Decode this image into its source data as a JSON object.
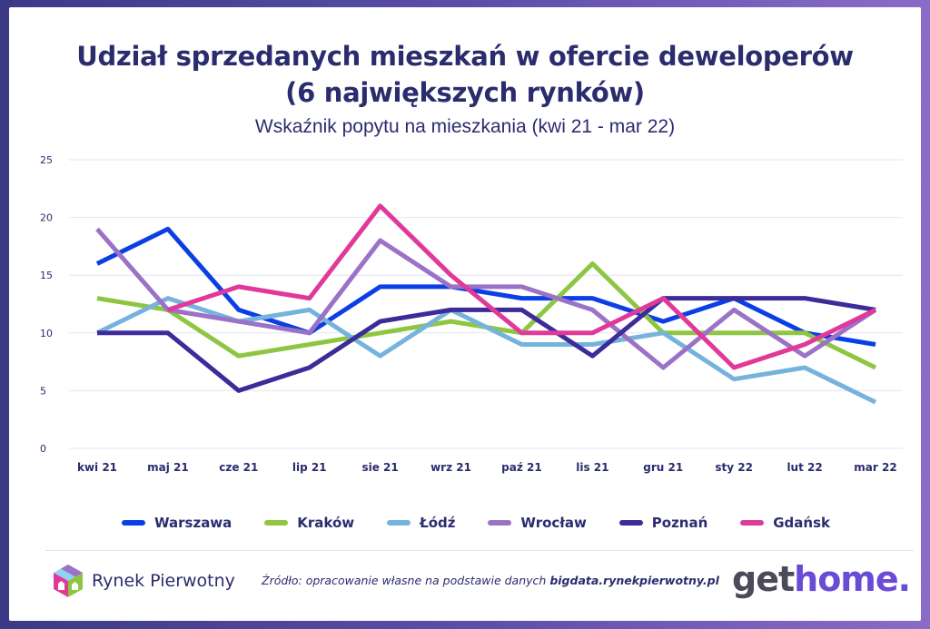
{
  "title_line1": "Udział sprzedanych mieszkań w ofercie deweloperów",
  "title_line2": "(6 największych rynków)",
  "subtitle": "Wskaźnik popytu na mieszkania (kwi 21 - mar 22)",
  "chart_data": {
    "type": "line",
    "categories": [
      "kwi 21",
      "maj 21",
      "cze 21",
      "lip 21",
      "sie 21",
      "wrz 21",
      "paź 21",
      "lis 21",
      "gru 21",
      "sty 22",
      "lut 22",
      "mar 22"
    ],
    "ylim": [
      0,
      25
    ],
    "yticks": [
      0,
      5,
      10,
      15,
      20,
      25
    ],
    "grid": true,
    "legend_position": "bottom",
    "series": [
      {
        "name": "Warszawa",
        "color": "#0b3fe6",
        "values": [
          16,
          19,
          12,
          10,
          14,
          14,
          13,
          13,
          11,
          13,
          10,
          9
        ]
      },
      {
        "name": "Kraków",
        "color": "#8ec641",
        "values": [
          13,
          12,
          8,
          9,
          10,
          11,
          10,
          16,
          10,
          10,
          10,
          7
        ]
      },
      {
        "name": "Łódź",
        "color": "#76b3dc",
        "values": [
          10,
          13,
          11,
          12,
          8,
          12,
          9,
          9,
          10,
          6,
          7,
          4
        ]
      },
      {
        "name": "Wrocław",
        "color": "#9b72c6",
        "values": [
          19,
          12,
          11,
          10,
          18,
          14,
          14,
          12,
          7,
          12,
          8,
          12
        ]
      },
      {
        "name": "Poznań",
        "color": "#3d2b9a",
        "values": [
          10,
          10,
          5,
          7,
          11,
          12,
          12,
          8,
          13,
          13,
          13,
          12
        ]
      },
      {
        "name": "Gdańsk",
        "color": "#e0399a",
        "values": [
          null,
          12,
          14,
          13,
          21,
          15,
          10,
          10,
          13,
          7,
          9,
          12
        ]
      }
    ]
  },
  "footer": {
    "brand_left": "Rynek Pierwotny",
    "source_prefix": "Źródło: opracowanie własne na podstawie danych ",
    "source_link": "bigdata.rynekpierwotny.pl",
    "brand_right_part1": "get",
    "brand_right_part2": "home",
    "brand_right_part3": "."
  },
  "colors": {
    "title": "#2b2c6e",
    "grid": "#e3e4f2",
    "gethome_get": "#4a4a5a",
    "gethome_home": "#6a4bd6"
  }
}
